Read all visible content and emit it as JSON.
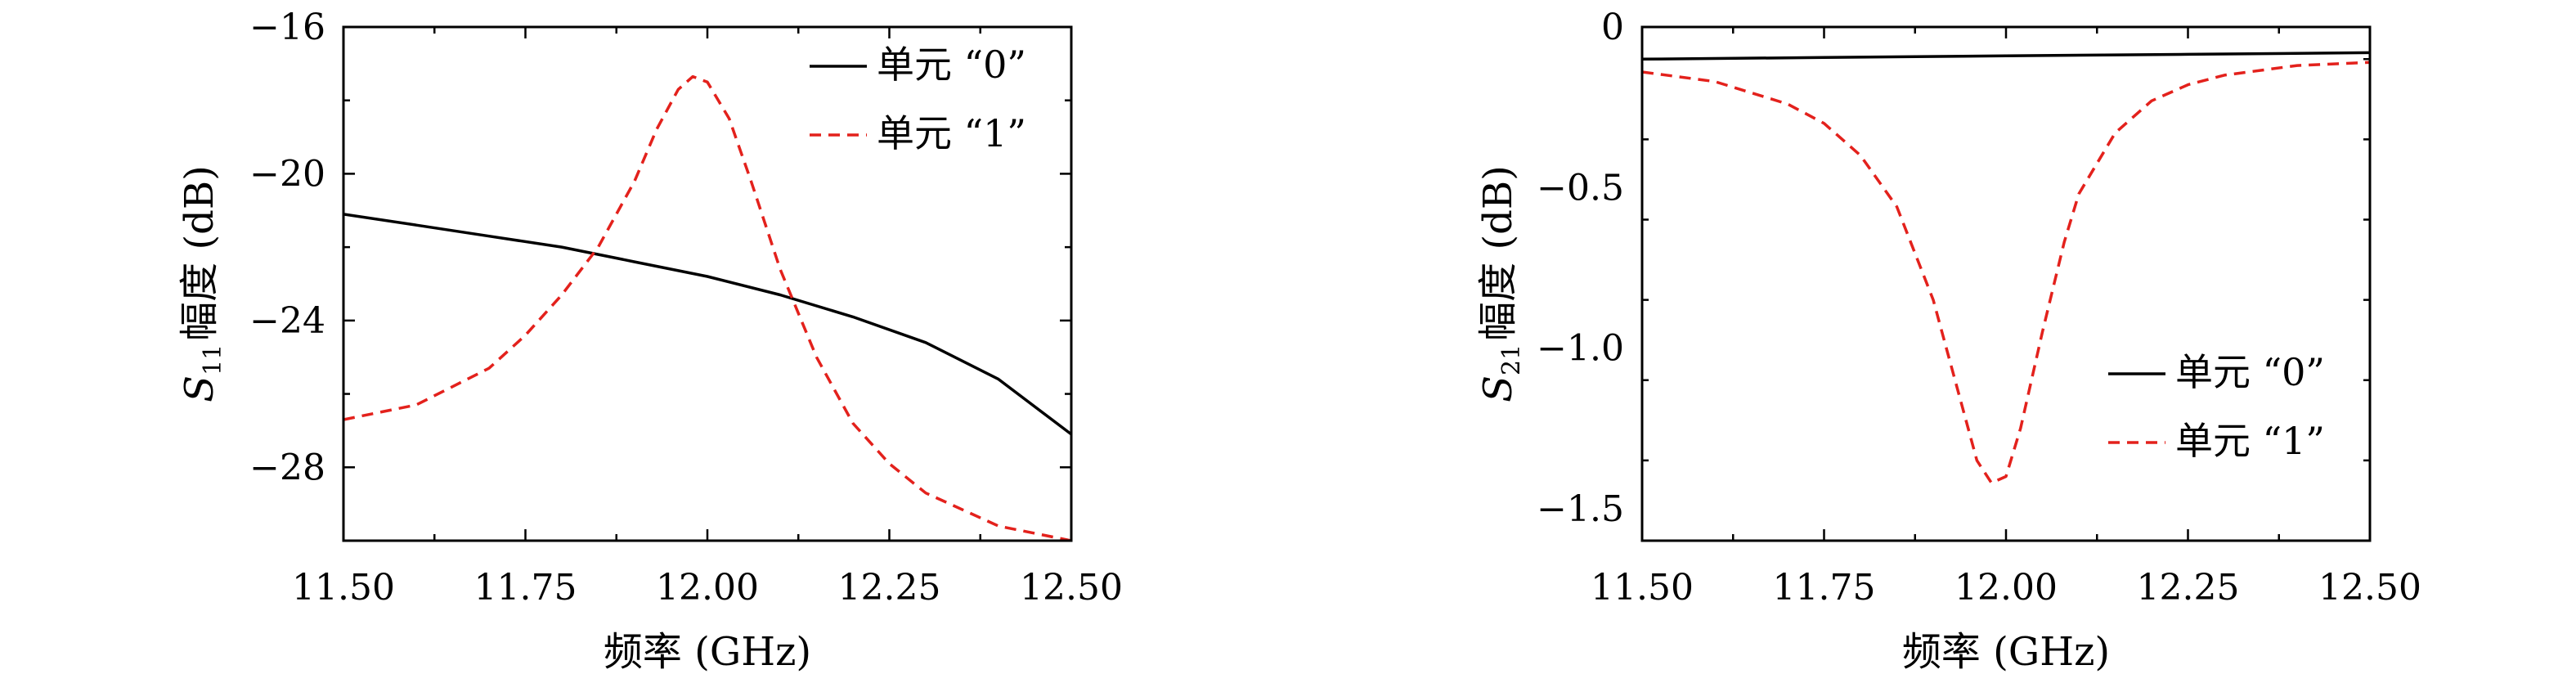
{
  "colors": {
    "unit0": "#000000",
    "unit1": "#e3211c",
    "axis": "#000000"
  },
  "chart_data": [
    {
      "type": "line",
      "title": "",
      "xlabel": "频率 (GHz)",
      "ylabel_symbol": "S",
      "ylabel_sub": "11",
      "ylabel_text": "幅度 (dB)",
      "xlim": [
        11.5,
        12.5
      ],
      "ylim": [
        -30,
        -16
      ],
      "xticks": [
        11.5,
        11.75,
        12.0,
        12.25,
        12.5
      ],
      "xtick_labels": [
        "11.50",
        "11.75",
        "12.00",
        "12.25",
        "12.50"
      ],
      "yticks": [
        -28,
        -24,
        -20,
        -16
      ],
      "ytick_labels": [
        "−28",
        "−24",
        "−20",
        "−16"
      ],
      "grid": false,
      "legend_position": "top-right",
      "series": [
        {
          "name": "单元 “0”",
          "style": "solid",
          "color": "#000000",
          "x": [
            11.5,
            11.6,
            11.7,
            11.8,
            11.9,
            12.0,
            12.1,
            12.2,
            12.3,
            12.4,
            12.5
          ],
          "y": [
            -21.1,
            -21.4,
            -21.7,
            -22.0,
            -22.4,
            -22.8,
            -23.3,
            -23.9,
            -24.6,
            -25.6,
            -27.1
          ]
        },
        {
          "name": "单元 “1”",
          "style": "dashed",
          "color": "#e3211c",
          "x": [
            11.5,
            11.6,
            11.7,
            11.75,
            11.8,
            11.85,
            11.9,
            11.93,
            11.96,
            11.98,
            12.0,
            12.03,
            12.06,
            12.1,
            12.15,
            12.2,
            12.25,
            12.3,
            12.4,
            12.5
          ],
          "y": [
            -26.7,
            -26.3,
            -25.3,
            -24.4,
            -23.3,
            -22.0,
            -20.2,
            -18.8,
            -17.7,
            -17.35,
            -17.5,
            -18.5,
            -20.2,
            -22.6,
            -25.0,
            -26.8,
            -27.9,
            -28.7,
            -29.6,
            -30.0
          ]
        }
      ]
    },
    {
      "type": "line",
      "title": "",
      "xlabel": "频率 (GHz)",
      "ylabel_symbol": "S",
      "ylabel_sub": "21",
      "ylabel_text": "幅度 (dB)",
      "xlim": [
        11.5,
        12.5
      ],
      "ylim": [
        -1.6,
        0
      ],
      "xticks": [
        11.5,
        11.75,
        12.0,
        12.25,
        12.5
      ],
      "xtick_labels": [
        "11.50",
        "11.75",
        "12.00",
        "12.25",
        "12.50"
      ],
      "yticks": [
        -1.5,
        -1.0,
        -0.5,
        0
      ],
      "ytick_labels": [
        "−1.5",
        "−1.0",
        "−0.5",
        "0"
      ],
      "grid": false,
      "legend_position": "bottom-right",
      "series": [
        {
          "name": "单元 “0”",
          "style": "solid",
          "color": "#000000",
          "x": [
            11.5,
            11.75,
            12.0,
            12.25,
            12.5
          ],
          "y": [
            -0.1,
            -0.095,
            -0.09,
            -0.085,
            -0.08
          ]
        },
        {
          "name": "单元 “1”",
          "style": "dashed",
          "color": "#e3211c",
          "x": [
            11.5,
            11.6,
            11.7,
            11.75,
            11.8,
            11.85,
            11.9,
            11.93,
            11.96,
            11.98,
            12.0,
            12.02,
            12.05,
            12.08,
            12.1,
            12.15,
            12.2,
            12.25,
            12.3,
            12.4,
            12.5
          ],
          "y": [
            -0.14,
            -0.17,
            -0.24,
            -0.3,
            -0.4,
            -0.56,
            -0.85,
            -1.1,
            -1.35,
            -1.42,
            -1.4,
            -1.25,
            -0.95,
            -0.67,
            -0.52,
            -0.33,
            -0.23,
            -0.18,
            -0.15,
            -0.12,
            -0.11
          ]
        }
      ]
    }
  ]
}
